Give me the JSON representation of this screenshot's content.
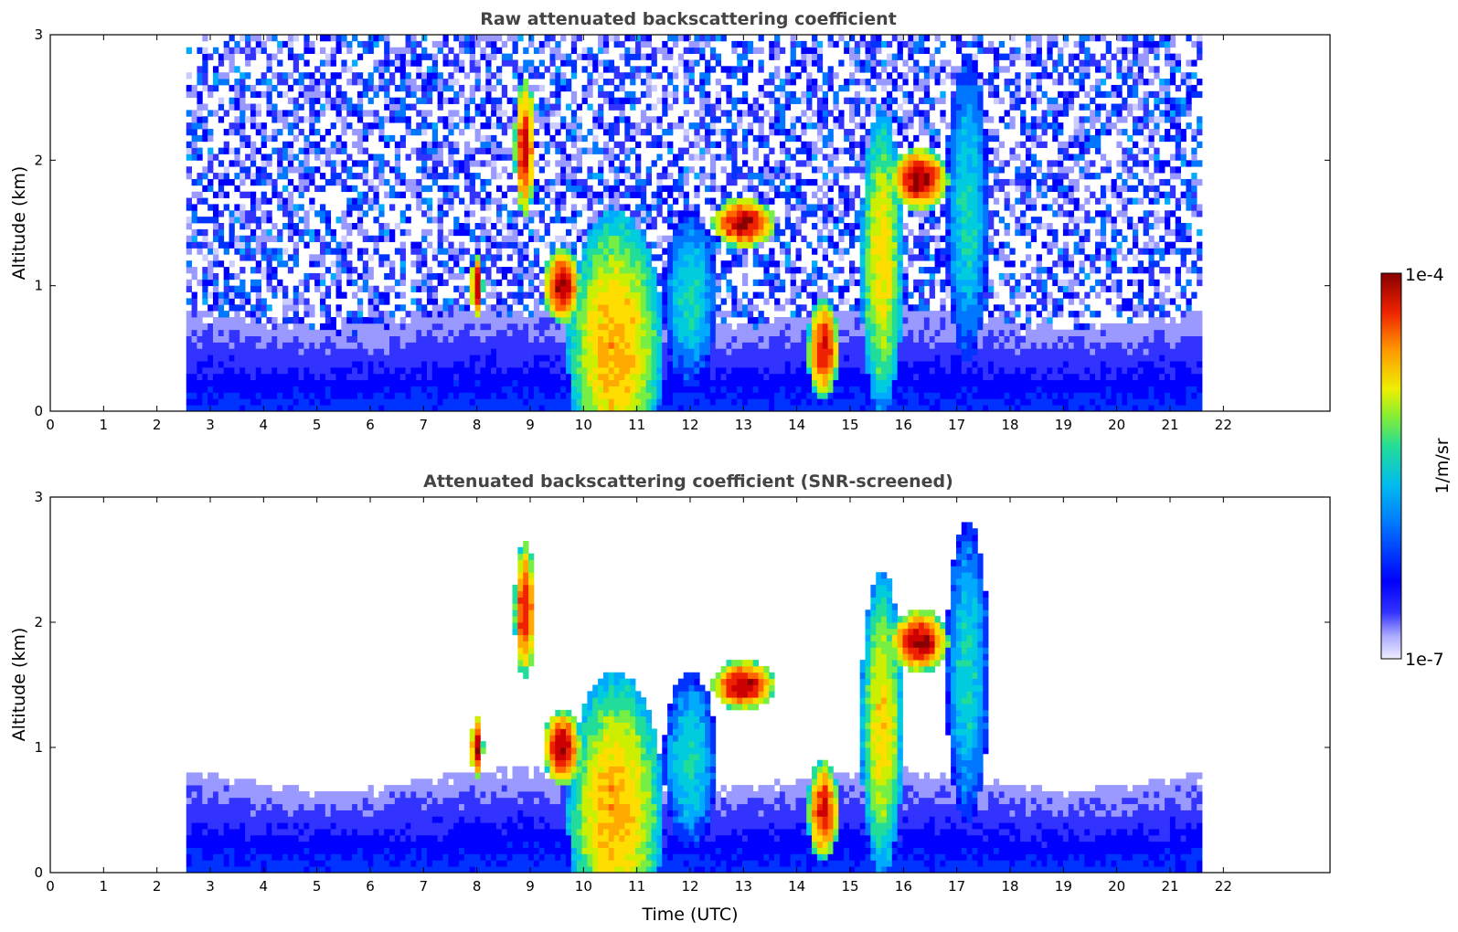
{
  "chart_data": [
    {
      "type": "heatmap",
      "title": "Raw attenuated backscattering coefficient",
      "xlabel": "",
      "ylabel": "Altitude (km)",
      "xlim": [
        0,
        24
      ],
      "ylim": [
        0,
        3
      ],
      "xticks": [
        0,
        1,
        2,
        3,
        4,
        5,
        6,
        7,
        8,
        9,
        10,
        11,
        12,
        13,
        14,
        15,
        16,
        17,
        18,
        19,
        20,
        21,
        22
      ],
      "yticks": [
        0,
        1,
        2,
        3
      ],
      "data_time_range": [
        2.55,
        21.6
      ],
      "screened": false,
      "clouds": [
        {
          "t": 8.0,
          "z": 1.0,
          "w": 0.12,
          "h": 0.25,
          "level": 0.95
        },
        {
          "t": 8.9,
          "z": 2.1,
          "w": 0.2,
          "h": 0.55,
          "level": 0.9
        },
        {
          "t": 9.6,
          "z": 1.0,
          "w": 0.35,
          "h": 0.3,
          "level": 0.95
        },
        {
          "t": 10.6,
          "z": 0.5,
          "w": 0.9,
          "h": 1.1,
          "level": 0.75
        },
        {
          "t": 12.0,
          "z": 0.9,
          "w": 0.5,
          "h": 0.7,
          "level": 0.5
        },
        {
          "t": 13.0,
          "z": 1.5,
          "w": 0.6,
          "h": 0.2,
          "level": 0.95
        },
        {
          "t": 14.5,
          "z": 0.5,
          "w": 0.3,
          "h": 0.4,
          "level": 0.9
        },
        {
          "t": 15.6,
          "z": 1.2,
          "w": 0.4,
          "h": 1.2,
          "level": 0.7
        },
        {
          "t": 16.3,
          "z": 1.85,
          "w": 0.55,
          "h": 0.25,
          "level": 0.95
        },
        {
          "t": 17.2,
          "z": 1.6,
          "w": 0.4,
          "h": 1.2,
          "level": 0.5
        }
      ]
    },
    {
      "type": "heatmap",
      "title": "Attenuated backscattering coefficient (SNR-screened)",
      "xlabel": "Time (UTC)",
      "ylabel": "Altitude (km)",
      "xlim": [
        0,
        24
      ],
      "ylim": [
        0,
        3
      ],
      "xticks": [
        0,
        1,
        2,
        3,
        4,
        5,
        6,
        7,
        8,
        9,
        10,
        11,
        12,
        13,
        14,
        15,
        16,
        17,
        18,
        19,
        20,
        21,
        22
      ],
      "yticks": [
        0,
        1,
        2,
        3
      ],
      "data_time_range": [
        2.55,
        21.6
      ],
      "screened": true,
      "clouds": [
        {
          "t": 8.0,
          "z": 1.0,
          "w": 0.12,
          "h": 0.25,
          "level": 0.95
        },
        {
          "t": 8.9,
          "z": 2.1,
          "w": 0.2,
          "h": 0.55,
          "level": 0.9
        },
        {
          "t": 9.6,
          "z": 1.0,
          "w": 0.35,
          "h": 0.3,
          "level": 0.95
        },
        {
          "t": 10.6,
          "z": 0.5,
          "w": 0.9,
          "h": 1.1,
          "level": 0.75
        },
        {
          "t": 12.0,
          "z": 0.9,
          "w": 0.5,
          "h": 0.7,
          "level": 0.5
        },
        {
          "t": 13.0,
          "z": 1.5,
          "w": 0.6,
          "h": 0.2,
          "level": 0.95
        },
        {
          "t": 14.5,
          "z": 0.5,
          "w": 0.3,
          "h": 0.4,
          "level": 0.9
        },
        {
          "t": 15.6,
          "z": 1.2,
          "w": 0.4,
          "h": 1.2,
          "level": 0.7
        },
        {
          "t": 16.3,
          "z": 1.85,
          "w": 0.55,
          "h": 0.25,
          "level": 0.95
        },
        {
          "t": 17.2,
          "z": 1.6,
          "w": 0.4,
          "h": 1.2,
          "level": 0.5
        }
      ]
    }
  ],
  "colorbar": {
    "label": "1/m/sr",
    "max_label": "1e-4",
    "min_label": "1e-7",
    "colors": [
      "#eeeeff",
      "#ccccff",
      "#9999ff",
      "#3333ff",
      "#0000ff",
      "#0033ff",
      "#0077ff",
      "#00aaff",
      "#00ccdd",
      "#22dd99",
      "#77ee44",
      "#ccee00",
      "#ffdd00",
      "#ffaa00",
      "#ff6600",
      "#ee2200",
      "#cc0000",
      "#880000"
    ]
  }
}
